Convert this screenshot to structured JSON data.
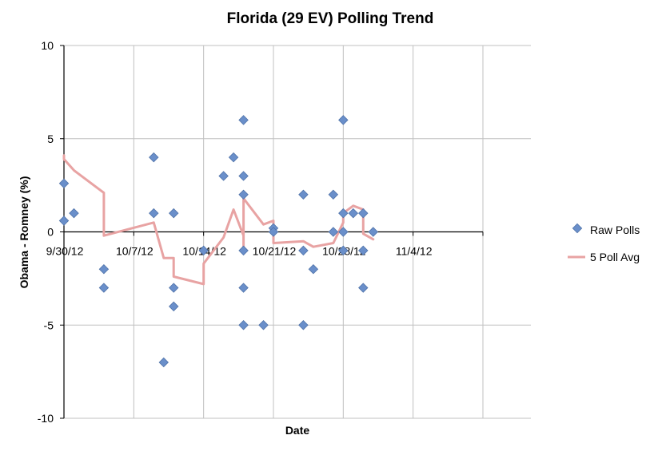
{
  "chart_data": {
    "type": "scatter",
    "title": "Florida (29 EV) Polling Trend",
    "xlabel": "Date",
    "ylabel": "Obama - Romney (%)",
    "x_axis": {
      "type": "date",
      "min": "2012-09-30",
      "max": "2012-11-11",
      "ticks": [
        {
          "value": "2012-09-30",
          "label": "9/30/12"
        },
        {
          "value": "2012-10-07",
          "label": "10/7/12"
        },
        {
          "value": "2012-10-14",
          "label": "10/14/12"
        },
        {
          "value": "2012-10-21",
          "label": "10/21/12"
        },
        {
          "value": "2012-10-28",
          "label": "10/28/12"
        },
        {
          "value": "2012-11-04",
          "label": "11/4/12"
        },
        {
          "value": "2012-11-11",
          "label": ""
        }
      ]
    },
    "y_axis": {
      "min": -10,
      "max": 10,
      "ticks": [
        {
          "value": 10,
          "label": "10"
        },
        {
          "value": 5,
          "label": "5"
        },
        {
          "value": 0,
          "label": "0"
        },
        {
          "value": -5,
          "label": "-5"
        },
        {
          "value": -10,
          "label": "-10"
        }
      ]
    },
    "grid": true,
    "legend_position": "right",
    "colors": {
      "raw_polls": "#6a8fca",
      "raw_polls_stroke": "#4f72a8",
      "poll_avg": "#e8a3a3",
      "grid": "#c0c0c0",
      "axis": "#000000"
    },
    "series": [
      {
        "name": "Raw Polls",
        "kind": "scatter",
        "points": [
          {
            "x": "2012-09-30",
            "y": 2.6
          },
          {
            "x": "2012-09-30",
            "y": 0.6
          },
          {
            "x": "2012-10-01",
            "y": 1
          },
          {
            "x": "2012-10-04",
            "y": -2
          },
          {
            "x": "2012-10-04",
            "y": -3
          },
          {
            "x": "2012-10-09",
            "y": 4
          },
          {
            "x": "2012-10-09",
            "y": 1
          },
          {
            "x": "2012-10-10",
            "y": -7
          },
          {
            "x": "2012-10-11",
            "y": 1
          },
          {
            "x": "2012-10-11",
            "y": -3
          },
          {
            "x": "2012-10-11",
            "y": -4
          },
          {
            "x": "2012-10-14",
            "y": -1
          },
          {
            "x": "2012-10-16",
            "y": 3
          },
          {
            "x": "2012-10-17",
            "y": 4
          },
          {
            "x": "2012-10-18",
            "y": 6
          },
          {
            "x": "2012-10-18",
            "y": 3
          },
          {
            "x": "2012-10-18",
            "y": 2
          },
          {
            "x": "2012-10-18",
            "y": -1
          },
          {
            "x": "2012-10-18",
            "y": -3
          },
          {
            "x": "2012-10-18",
            "y": -5
          },
          {
            "x": "2012-10-20",
            "y": -5
          },
          {
            "x": "2012-10-21",
            "y": 0.2
          },
          {
            "x": "2012-10-21",
            "y": 0
          },
          {
            "x": "2012-10-24",
            "y": 2
          },
          {
            "x": "2012-10-24",
            "y": -1
          },
          {
            "x": "2012-10-24",
            "y": -5
          },
          {
            "x": "2012-10-25",
            "y": -2
          },
          {
            "x": "2012-10-27",
            "y": 2
          },
          {
            "x": "2012-10-27",
            "y": 0
          },
          {
            "x": "2012-10-28",
            "y": 6
          },
          {
            "x": "2012-10-28",
            "y": 1
          },
          {
            "x": "2012-10-28",
            "y": 0
          },
          {
            "x": "2012-10-28",
            "y": -1
          },
          {
            "x": "2012-10-29",
            "y": 1
          },
          {
            "x": "2012-10-30",
            "y": 1
          },
          {
            "x": "2012-10-30",
            "y": -1
          },
          {
            "x": "2012-10-30",
            "y": -3
          },
          {
            "x": "2012-10-31",
            "y": 0
          }
        ]
      },
      {
        "name": "5 Poll Avg",
        "kind": "line",
        "points": [
          {
            "x": "2012-09-30",
            "y": 4.1
          },
          {
            "x": "2012-09-30",
            "y": 3.9
          },
          {
            "x": "2012-10-01",
            "y": 3.3
          },
          {
            "x": "2012-10-04",
            "y": 2.1
          },
          {
            "x": "2012-10-04",
            "y": -0.2
          },
          {
            "x": "2012-10-09",
            "y": 0.5
          },
          {
            "x": "2012-10-10",
            "y": -1.4
          },
          {
            "x": "2012-10-11",
            "y": -1.4
          },
          {
            "x": "2012-10-11",
            "y": -2.4
          },
          {
            "x": "2012-10-14",
            "y": -2.8
          },
          {
            "x": "2012-10-14",
            "y": -1.7
          },
          {
            "x": "2012-10-16",
            "y": -0.3
          },
          {
            "x": "2012-10-17",
            "y": 1.2
          },
          {
            "x": "2012-10-18",
            "y": -0.2
          },
          {
            "x": "2012-10-18",
            "y": -0.8
          },
          {
            "x": "2012-10-18",
            "y": 1.8
          },
          {
            "x": "2012-10-20",
            "y": 0.4
          },
          {
            "x": "2012-10-21",
            "y": 0.6
          },
          {
            "x": "2012-10-21",
            "y": -0.6
          },
          {
            "x": "2012-10-24",
            "y": -0.5
          },
          {
            "x": "2012-10-25",
            "y": -0.8
          },
          {
            "x": "2012-10-27",
            "y": -0.6
          },
          {
            "x": "2012-10-28",
            "y": 0.5
          },
          {
            "x": "2012-10-28",
            "y": 1
          },
          {
            "x": "2012-10-29",
            "y": 1.4
          },
          {
            "x": "2012-10-30",
            "y": 1.2
          },
          {
            "x": "2012-10-30",
            "y": -0.1
          },
          {
            "x": "2012-10-31",
            "y": -0.4
          }
        ]
      }
    ]
  }
}
